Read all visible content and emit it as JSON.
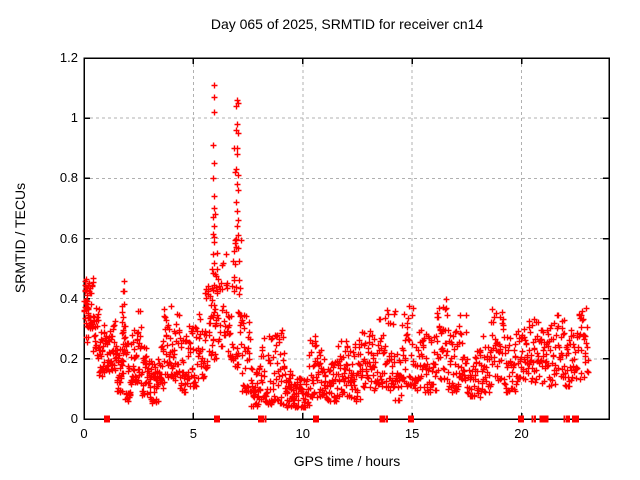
{
  "chart_data": {
    "type": "scatter",
    "title": "Day 065 of 2025, SRMTID for receiver cn14",
    "xlabel": "GPS time / hours",
    "ylabel": "SRMTID / TECUs",
    "xlim": [
      0,
      24
    ],
    "ylim": [
      0,
      1.2
    ],
    "xticks": {
      "values": [
        0,
        5,
        10,
        15,
        20
      ],
      "labels": [
        "0",
        "5",
        "10",
        "15",
        "20"
      ]
    },
    "yticks": {
      "values": [
        0,
        0.2,
        0.4,
        0.6,
        0.8,
        1.0,
        1.2
      ],
      "labels": [
        "0",
        "0.2",
        "0.4",
        "0.6",
        "0.8",
        "1",
        "1.2"
      ]
    },
    "grid": true,
    "legend": "none",
    "colors": {
      "points": "#ff0000",
      "grid": "#b0b0b0",
      "axis": "#000000",
      "text": "#000000",
      "background": "#ffffff"
    },
    "seed": 13,
    "series": [
      {
        "name": "srmtid",
        "marker": "plus",
        "envelope_format": [
          "t_start_hours",
          "t_end_hours",
          "v_min_tecus",
          "v_max_tecus",
          "n_points"
        ],
        "envelope_segments": [
          [
            0.0,
            0.18,
            0.36,
            0.48,
            26
          ],
          [
            0.05,
            0.3,
            0.24,
            0.35,
            14
          ],
          [
            0.18,
            0.42,
            0.3,
            0.47,
            26
          ],
          [
            0.42,
            0.68,
            0.2,
            0.38,
            24
          ],
          [
            0.68,
            0.95,
            0.14,
            0.32,
            28
          ],
          [
            0.95,
            1.18,
            0.16,
            0.28,
            20
          ],
          [
            1.18,
            1.5,
            0.16,
            0.33,
            30
          ],
          [
            1.5,
            1.78,
            0.09,
            0.24,
            26
          ],
          [
            1.72,
            1.88,
            0.14,
            0.47,
            20
          ],
          [
            1.88,
            2.15,
            0.06,
            0.26,
            26
          ],
          [
            2.15,
            2.45,
            0.12,
            0.3,
            28
          ],
          [
            2.45,
            2.62,
            0.14,
            0.37,
            16
          ],
          [
            2.62,
            3.0,
            0.08,
            0.24,
            32
          ],
          [
            3.0,
            3.4,
            0.05,
            0.2,
            34
          ],
          [
            3.4,
            3.66,
            0.1,
            0.26,
            22
          ],
          [
            3.66,
            4.02,
            0.14,
            0.38,
            30
          ],
          [
            4.02,
            4.38,
            0.13,
            0.35,
            28
          ],
          [
            4.38,
            4.78,
            0.09,
            0.28,
            32
          ],
          [
            4.78,
            5.12,
            0.11,
            0.32,
            28
          ],
          [
            5.12,
            5.52,
            0.13,
            0.35,
            30
          ],
          [
            5.52,
            5.82,
            0.17,
            0.45,
            24
          ],
          [
            5.82,
            6.1,
            0.2,
            0.62,
            34
          ],
          [
            6.1,
            6.55,
            0.24,
            0.56,
            26
          ],
          [
            6.55,
            6.82,
            0.18,
            0.45,
            18
          ],
          [
            6.82,
            7.2,
            0.17,
            0.62,
            34
          ],
          [
            7.2,
            7.62,
            0.09,
            0.35,
            30
          ],
          [
            7.62,
            8.1,
            0.04,
            0.18,
            38
          ],
          [
            8.1,
            8.62,
            0.05,
            0.28,
            36
          ],
          [
            8.62,
            9.22,
            0.05,
            0.3,
            40
          ],
          [
            9.22,
            9.62,
            0.04,
            0.16,
            34
          ],
          [
            9.62,
            10.28,
            0.04,
            0.14,
            46
          ],
          [
            10.28,
            10.62,
            0.07,
            0.28,
            24
          ],
          [
            10.62,
            11.12,
            0.07,
            0.24,
            36
          ],
          [
            11.12,
            11.62,
            0.06,
            0.2,
            36
          ],
          [
            11.62,
            12.12,
            0.07,
            0.26,
            36
          ],
          [
            12.12,
            12.62,
            0.06,
            0.27,
            36
          ],
          [
            12.62,
            13.32,
            0.09,
            0.3,
            46
          ],
          [
            13.32,
            13.78,
            0.11,
            0.34,
            32
          ],
          [
            13.78,
            14.22,
            0.09,
            0.37,
            30
          ],
          [
            14.22,
            14.48,
            0.06,
            0.22,
            18
          ],
          [
            14.48,
            15.12,
            0.11,
            0.38,
            42
          ],
          [
            15.12,
            15.62,
            0.09,
            0.3,
            34
          ],
          [
            15.62,
            16.12,
            0.09,
            0.28,
            34
          ],
          [
            16.12,
            16.62,
            0.13,
            0.4,
            36
          ],
          [
            16.62,
            17.12,
            0.09,
            0.3,
            34
          ],
          [
            17.12,
            17.48,
            0.12,
            0.35,
            26
          ],
          [
            17.48,
            18.12,
            0.07,
            0.24,
            42
          ],
          [
            18.12,
            18.62,
            0.09,
            0.28,
            32
          ],
          [
            18.62,
            19.22,
            0.12,
            0.38,
            38
          ],
          [
            19.22,
            19.72,
            0.09,
            0.28,
            32
          ],
          [
            19.72,
            20.22,
            0.11,
            0.3,
            32
          ],
          [
            20.22,
            20.92,
            0.12,
            0.34,
            44
          ],
          [
            20.92,
            21.62,
            0.11,
            0.33,
            44
          ],
          [
            21.62,
            21.98,
            0.14,
            0.4,
            26
          ],
          [
            21.98,
            22.58,
            0.11,
            0.3,
            38
          ],
          [
            22.58,
            23.05,
            0.13,
            0.37,
            30
          ]
        ],
        "peak_points": [
          [
            5.92,
            1.11
          ],
          [
            5.93,
            1.07
          ],
          [
            5.95,
            1.02
          ],
          [
            5.9,
            0.91
          ],
          [
            5.96,
            0.85
          ],
          [
            5.91,
            0.8
          ],
          [
            5.94,
            0.74
          ],
          [
            5.92,
            0.7
          ],
          [
            5.97,
            0.68
          ],
          [
            5.9,
            0.67
          ],
          [
            5.95,
            0.64
          ],
          [
            5.93,
            0.59
          ],
          [
            5.89,
            0.55
          ],
          [
            5.96,
            0.52
          ],
          [
            6.98,
            1.06
          ],
          [
            7.02,
            1.05
          ],
          [
            6.96,
            1.04
          ],
          [
            7.0,
            0.98
          ],
          [
            6.97,
            0.96
          ],
          [
            7.03,
            0.95
          ],
          [
            6.99,
            0.9
          ],
          [
            7.01,
            0.88
          ],
          [
            6.95,
            0.83
          ],
          [
            7.04,
            0.81
          ],
          [
            6.98,
            0.78
          ],
          [
            7.02,
            0.76
          ],
          [
            6.97,
            0.72
          ],
          [
            7.0,
            0.69
          ],
          [
            7.05,
            0.66
          ],
          [
            6.99,
            0.64
          ],
          [
            7.03,
            0.61
          ],
          [
            6.96,
            0.6
          ],
          [
            6.85,
            0.9
          ],
          [
            6.88,
            0.82
          ]
        ]
      },
      {
        "name": "zero-flag-markers",
        "marker": "filled-square",
        "marker_format": [
          "t_hours",
          "square_width_px"
        ],
        "points": [
          [
            1.05,
            6
          ],
          [
            6.08,
            6
          ],
          [
            8.1,
            6
          ],
          [
            8.3,
            2
          ],
          [
            10.6,
            6
          ],
          [
            13.65,
            6
          ],
          [
            13.85,
            2
          ],
          [
            14.95,
            6
          ],
          [
            19.97,
            6
          ],
          [
            20.5,
            2
          ],
          [
            20.62,
            2
          ],
          [
            20.95,
            6
          ],
          [
            21.1,
            6
          ],
          [
            21.97,
            2
          ],
          [
            22.07,
            2
          ],
          [
            22.17,
            2
          ],
          [
            22.45,
            6
          ],
          [
            22.58,
            2
          ]
        ]
      }
    ]
  }
}
